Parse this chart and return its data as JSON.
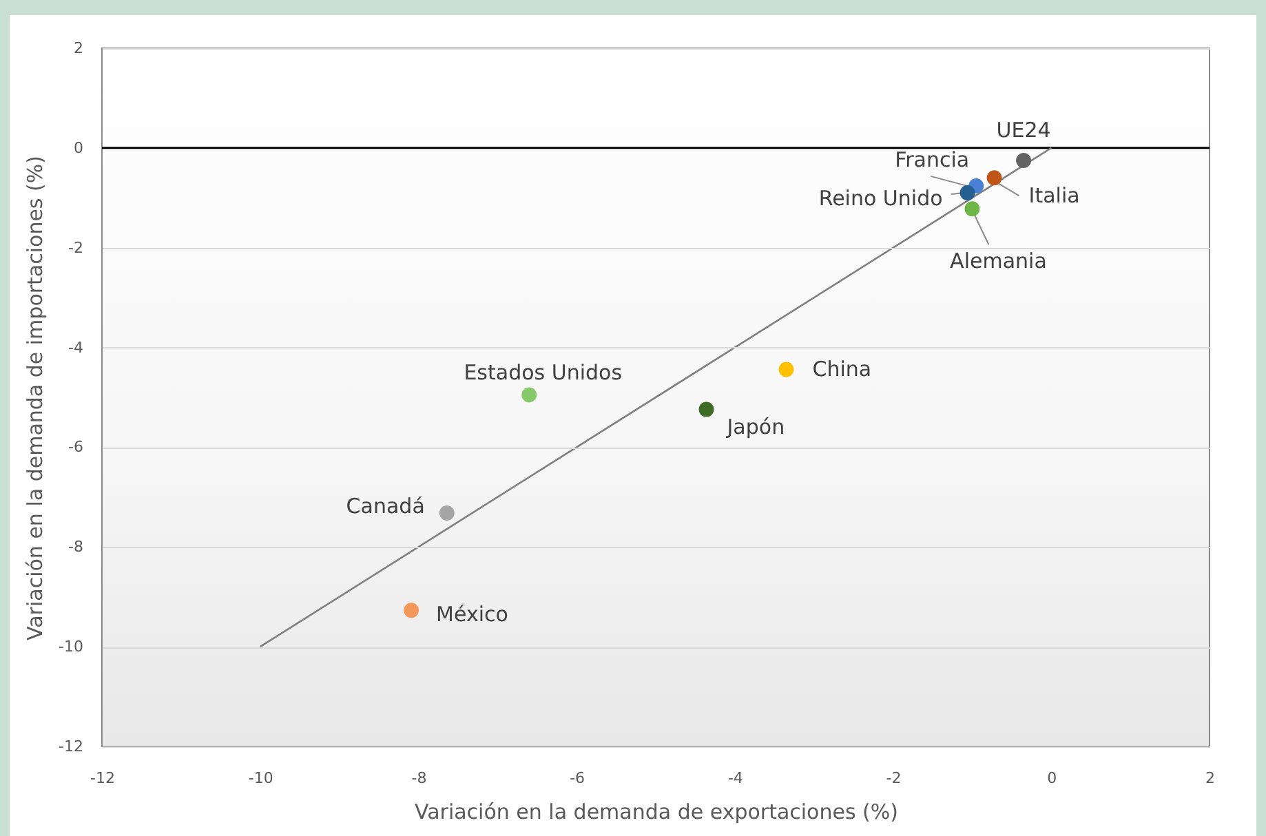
{
  "chart_data": {
    "type": "scatter",
    "xlabel": "Variación en la demanda de exportaciones (%)",
    "ylabel": "Variación en la demanda de importaciones (%)",
    "xlim": [
      -12,
      2
    ],
    "ylim": [
      -12,
      2
    ],
    "xticks": [
      -12,
      -10,
      -8,
      -6,
      -4,
      -2,
      0,
      2
    ],
    "yticks": [
      -12,
      -10,
      -8,
      -6,
      -4,
      -2,
      0,
      2
    ],
    "grid": "y",
    "marker": "circle",
    "ref_lines": [
      {
        "axis": "y",
        "value": 0,
        "color": "#000000"
      }
    ],
    "series": [
      {
        "name": "UE24",
        "color": "#636363",
        "x": [
          -0.35
        ],
        "values": [
          -0.25
        ]
      },
      {
        "name": "Italia",
        "color": "#c0551a",
        "x": [
          -0.72
        ],
        "values": [
          -0.6
        ]
      },
      {
        "name": "Francia",
        "color": "#4a7fd6",
        "x": [
          -0.95
        ],
        "values": [
          -0.76
        ]
      },
      {
        "name": "Reino Unido",
        "color": "#255e91",
        "x": [
          -1.06
        ],
        "values": [
          -0.9
        ]
      },
      {
        "name": "Alemania",
        "color": "#6db546",
        "x": [
          -1.0
        ],
        "values": [
          -1.22
        ]
      },
      {
        "name": "China",
        "color": "#ffc000",
        "x": [
          -3.35
        ],
        "values": [
          -4.44
        ]
      },
      {
        "name": "Japón",
        "color": "#3d6b26",
        "x": [
          -4.36
        ],
        "values": [
          -5.24
        ]
      },
      {
        "name": "Estados Unidos",
        "color": "#86c96a",
        "x": [
          -6.6
        ],
        "values": [
          -4.95
        ]
      },
      {
        "name": "Canadá",
        "color": "#a5a5a5",
        "x": [
          -7.64
        ],
        "values": [
          -7.32
        ]
      },
      {
        "name": "México",
        "color": "#f4975a",
        "x": [
          -8.09
        ],
        "values": [
          -9.27
        ]
      },
      {
        "type": "line",
        "color": "#7f7f7f",
        "marker": "none",
        "x": [
          -10,
          0
        ],
        "values": [
          -10,
          0
        ]
      }
    ]
  }
}
